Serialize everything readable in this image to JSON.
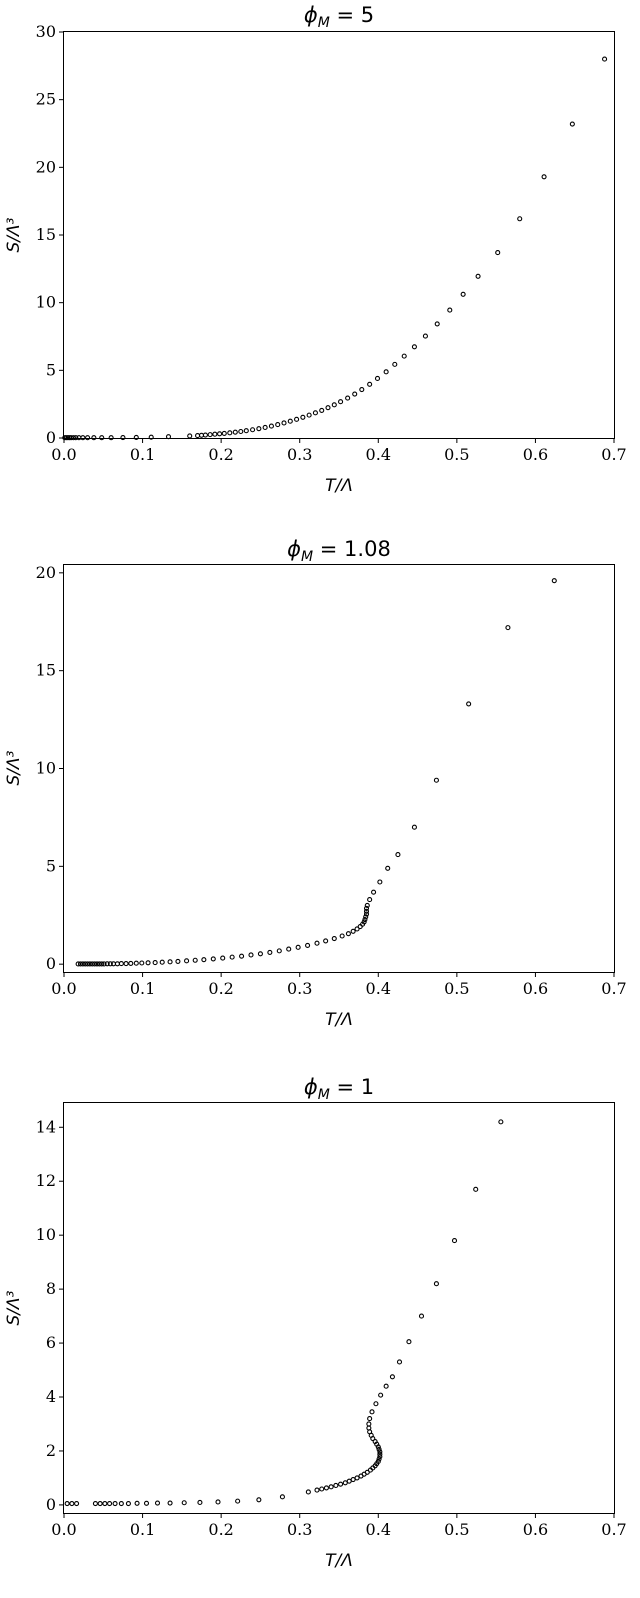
{
  "chart_data": [
    {
      "type": "scatter",
      "title": "ϕ_M = 5",
      "title_main": "ϕ",
      "title_sub": "M",
      "title_rest": " = 5",
      "xlabel": "T/Λ",
      "ylabel": "S/Λ³",
      "xlim": [
        0,
        0.7
      ],
      "ylim": [
        0,
        30
      ],
      "xticks": [
        0.0,
        0.1,
        0.2,
        0.3,
        0.4,
        0.5,
        0.6,
        0.7
      ],
      "xtick_labels": [
        "0.0",
        "0.1",
        "0.2",
        "0.3",
        "0.4",
        "0.5",
        "0.6",
        "0.7"
      ],
      "yticks": [
        0,
        5,
        10,
        15,
        20,
        25,
        30
      ],
      "ytick_labels": [
        "0",
        "5",
        "10",
        "15",
        "20",
        "25",
        "30"
      ],
      "grid": false,
      "marker": "open-circle",
      "x": [
        0.001,
        0.003,
        0.005,
        0.007,
        0.009,
        0.012,
        0.015,
        0.019,
        0.024,
        0.03,
        0.038,
        0.048,
        0.06,
        0.075,
        0.092,
        0.111,
        0.133,
        0.16,
        0.17,
        0.175,
        0.18,
        0.186,
        0.192,
        0.198,
        0.204,
        0.211,
        0.218,
        0.225,
        0.232,
        0.24,
        0.248,
        0.256,
        0.264,
        0.272,
        0.28,
        0.288,
        0.296,
        0.304,
        0.312,
        0.32,
        0.328,
        0.336,
        0.344,
        0.352,
        0.361,
        0.37,
        0.379,
        0.389,
        0.399,
        0.41,
        0.421,
        0.433,
        0.446,
        0.46,
        0.475,
        0.491,
        0.508,
        0.527,
        0.552,
        0.58,
        0.611,
        0.647,
        0.688
      ],
      "y": [
        0.02,
        0.02,
        0.02,
        0.02,
        0.02,
        0.02,
        0.02,
        0.02,
        0.02,
        0.02,
        0.02,
        0.02,
        0.02,
        0.03,
        0.04,
        0.06,
        0.1,
        0.15,
        0.18,
        0.2,
        0.22,
        0.25,
        0.28,
        0.31,
        0.34,
        0.38,
        0.43,
        0.48,
        0.54,
        0.61,
        0.69,
        0.78,
        0.88,
        0.99,
        1.11,
        1.24,
        1.38,
        1.53,
        1.69,
        1.86,
        2.04,
        2.24,
        2.45,
        2.68,
        2.95,
        3.25,
        3.58,
        3.97,
        4.4,
        4.89,
        5.44,
        6.05,
        6.74,
        7.53,
        8.43,
        9.45,
        10.62,
        11.95,
        13.7,
        16.2,
        19.3,
        23.2,
        28.0
      ]
    },
    {
      "type": "scatter",
      "title": "ϕ_M = 1.08",
      "title_main": "ϕ",
      "title_sub": "M",
      "title_rest": " = 1.08",
      "xlabel": "T/Λ",
      "ylabel": "S/Λ³",
      "xlim": [
        0,
        0.7
      ],
      "ylim": [
        -0.4,
        20.4
      ],
      "xticks": [
        0.0,
        0.1,
        0.2,
        0.3,
        0.4,
        0.5,
        0.6,
        0.7
      ],
      "xtick_labels": [
        "0.0",
        "0.1",
        "0.2",
        "0.3",
        "0.4",
        "0.5",
        "0.6",
        "0.7"
      ],
      "yticks": [
        0,
        5,
        10,
        15,
        20
      ],
      "ytick_labels": [
        "0",
        "5",
        "10",
        "15",
        "20"
      ],
      "grid": false,
      "marker": "open-circle",
      "x": [
        0.018,
        0.021,
        0.024,
        0.027,
        0.03,
        0.033,
        0.036,
        0.039,
        0.042,
        0.045,
        0.048,
        0.051,
        0.055,
        0.059,
        0.063,
        0.068,
        0.073,
        0.079,
        0.085,
        0.092,
        0.099,
        0.107,
        0.116,
        0.125,
        0.135,
        0.145,
        0.156,
        0.167,
        0.178,
        0.19,
        0.202,
        0.214,
        0.226,
        0.238,
        0.25,
        0.262,
        0.274,
        0.286,
        0.298,
        0.31,
        0.322,
        0.333,
        0.344,
        0.354,
        0.362,
        0.368,
        0.373,
        0.377,
        0.38,
        0.382,
        0.383,
        0.384,
        0.385,
        0.385,
        0.385,
        0.386,
        0.389,
        0.394,
        0.402,
        0.412,
        0.425,
        0.446,
        0.474,
        0.515,
        0.565,
        0.624
      ],
      "y": [
        0.01,
        0.01,
        0.01,
        0.01,
        0.01,
        0.01,
        0.01,
        0.01,
        0.01,
        0.01,
        0.01,
        0.01,
        0.02,
        0.02,
        0.02,
        0.02,
        0.03,
        0.03,
        0.04,
        0.05,
        0.06,
        0.07,
        0.08,
        0.1,
        0.12,
        0.14,
        0.17,
        0.2,
        0.23,
        0.27,
        0.31,
        0.36,
        0.41,
        0.47,
        0.53,
        0.6,
        0.68,
        0.77,
        0.86,
        0.96,
        1.07,
        1.19,
        1.31,
        1.44,
        1.56,
        1.68,
        1.8,
        1.92,
        2.04,
        2.16,
        2.28,
        2.42,
        2.56,
        2.7,
        2.85,
        3.0,
        3.3,
        3.68,
        4.2,
        4.9,
        5.6,
        7.0,
        9.4,
        13.3,
        17.2,
        19.6
      ]
    },
    {
      "type": "scatter",
      "title": "ϕ_M = 1",
      "title_main": "ϕ",
      "title_sub": "M",
      "title_rest": " = 1",
      "xlabel": "T/Λ",
      "ylabel": "S/Λ³",
      "xlim": [
        0,
        0.7
      ],
      "ylim": [
        -0.3,
        14.9
      ],
      "xticks": [
        0.0,
        0.1,
        0.2,
        0.3,
        0.4,
        0.5,
        0.6,
        0.7
      ],
      "xtick_labels": [
        "0.0",
        "0.1",
        "0.2",
        "0.3",
        "0.4",
        "0.5",
        "0.6",
        "0.7"
      ],
      "yticks": [
        0,
        2,
        4,
        6,
        8,
        10,
        12,
        14
      ],
      "ytick_labels": [
        "0",
        "2",
        "4",
        "6",
        "8",
        "10",
        "12",
        "14"
      ],
      "grid": false,
      "marker": "open-circle",
      "x": [
        0.004,
        0.01,
        0.016,
        0.04,
        0.046,
        0.052,
        0.058,
        0.065,
        0.073,
        0.082,
        0.093,
        0.105,
        0.119,
        0.135,
        0.153,
        0.173,
        0.196,
        0.221,
        0.248,
        0.278,
        0.311,
        0.322,
        0.328,
        0.334,
        0.34,
        0.346,
        0.352,
        0.358,
        0.363,
        0.368,
        0.373,
        0.378,
        0.382,
        0.386,
        0.39,
        0.393,
        0.396,
        0.398,
        0.4,
        0.401,
        0.402,
        0.402,
        0.402,
        0.401,
        0.4,
        0.398,
        0.396,
        0.393,
        0.391,
        0.389,
        0.388,
        0.388,
        0.389,
        0.392,
        0.397,
        0.403,
        0.41,
        0.418,
        0.427,
        0.439,
        0.455,
        0.474,
        0.497,
        0.524,
        0.556
      ],
      "y": [
        0.05,
        0.05,
        0.05,
        0.05,
        0.05,
        0.05,
        0.05,
        0.05,
        0.05,
        0.05,
        0.06,
        0.06,
        0.07,
        0.07,
        0.08,
        0.09,
        0.11,
        0.14,
        0.19,
        0.3,
        0.48,
        0.55,
        0.59,
        0.63,
        0.67,
        0.72,
        0.77,
        0.82,
        0.88,
        0.94,
        1.0,
        1.07,
        1.14,
        1.21,
        1.29,
        1.37,
        1.45,
        1.53,
        1.61,
        1.7,
        1.79,
        1.88,
        1.97,
        2.06,
        2.15,
        2.25,
        2.35,
        2.46,
        2.58,
        2.71,
        2.85,
        3.0,
        3.2,
        3.45,
        3.75,
        4.07,
        4.4,
        4.75,
        5.3,
        6.05,
        7.0,
        8.2,
        9.8,
        11.7,
        14.2
      ]
    }
  ]
}
